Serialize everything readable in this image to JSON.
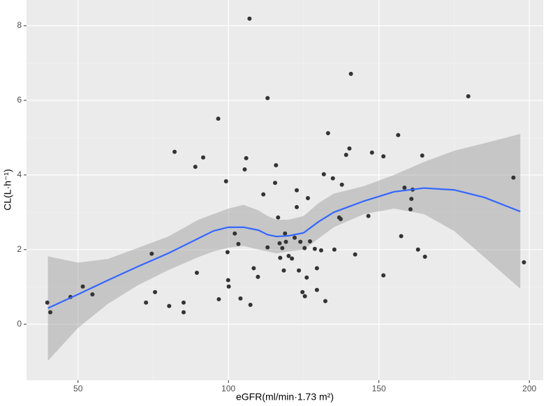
{
  "chart_data": {
    "type": "scatter",
    "x_label": "eGFR(ml/min·1.73 m²)",
    "y_label": "CL(L·h⁻¹)",
    "xlim": [
      32.9,
      204.6
    ],
    "ylim": [
      -1.5,
      8.69
    ],
    "xticks": [
      50,
      100,
      150,
      200
    ],
    "yticks": [
      0,
      2,
      4,
      6,
      8
    ],
    "grid": true,
    "point_color": "#333333",
    "x": [
      39.8,
      40.8,
      47.5,
      51.6,
      54.8,
      74.5,
      75.6,
      72.6,
      80.3,
      85.1,
      85.1,
      82.1,
      89.0,
      91.6,
      89.5,
      96.6,
      99.2,
      99.7,
      99.9,
      100.1,
      96.8,
      104.0,
      102.1,
      103.3,
      105.4,
      105.9,
      107.0,
      107.3,
      108.4,
      109.8,
      111.6,
      113.0,
      113.0,
      115.5,
      115.8,
      116.5,
      117.0,
      117.2,
      117.9,
      118.8,
      118.4,
      119.1,
      120.0,
      121.1,
      122.0,
      122.7,
      122.7,
      123.4,
      123.9,
      124.6,
      125.3,
      125.4,
      126.0,
      126.4,
      127.1,
      128.7,
      129.4,
      129.4,
      130.8,
      131.7,
      132.2,
      133.1,
      134.7,
      135.2,
      136.8,
      137.3,
      137.7,
      139.1,
      140.2,
      140.7,
      142.1,
      146.5,
      147.7,
      151.5,
      151.5,
      156.4,
      157.4,
      158.5,
      160.5,
      160.8,
      161.2,
      163.0,
      164.4,
      165.3,
      179.7,
      194.7,
      198.2
    ],
    "y": [
      0.58,
      0.32,
      0.73,
      1.01,
      0.8,
      1.89,
      0.86,
      0.58,
      0.49,
      0.32,
      0.58,
      4.62,
      4.22,
      4.47,
      1.38,
      5.51,
      3.83,
      1.93,
      1.18,
      1.01,
      0.67,
      0.69,
      2.43,
      2.15,
      4.15,
      4.45,
      8.19,
      0.52,
      1.5,
      1.27,
      3.48,
      6.06,
      2.06,
      3.79,
      4.26,
      2.86,
      2.17,
      1.78,
      2.04,
      2.43,
      1.44,
      2.21,
      1.83,
      1.76,
      2.32,
      3.14,
      3.59,
      1.44,
      2.21,
      0.86,
      2.04,
      0.75,
      1.25,
      3.38,
      2.22,
      2.02,
      1.5,
      0.92,
      1.98,
      4.02,
      0.62,
      5.12,
      3.91,
      2.0,
      2.86,
      2.82,
      3.74,
      4.54,
      4.71,
      6.71,
      1.87,
      2.9,
      4.6,
      4.5,
      1.31,
      5.07,
      2.36,
      3.66,
      3.08,
      3.36,
      3.61,
      2.0,
      4.52,
      1.81,
      6.11,
      3.93,
      1.66
    ],
    "smooth": {
      "color": "#3366ff",
      "band_color": "#999999",
      "x": [
        40,
        50,
        60,
        70,
        80,
        90,
        95,
        100,
        105,
        110,
        113,
        116,
        120,
        125,
        130,
        135,
        145,
        155,
        165,
        175,
        185,
        197
      ],
      "values": [
        0.43,
        0.8,
        1.18,
        1.55,
        1.9,
        2.3,
        2.5,
        2.6,
        2.6,
        2.52,
        2.4,
        2.35,
        2.37,
        2.45,
        2.75,
        3.0,
        3.3,
        3.55,
        3.65,
        3.6,
        3.4,
        3.02
      ],
      "lower": [
        -0.98,
        -0.1,
        0.55,
        1.05,
        1.45,
        1.8,
        1.95,
        2.05,
        2.1,
        2.0,
        1.95,
        1.9,
        1.95,
        2.0,
        2.3,
        2.6,
        2.95,
        3.1,
        2.95,
        2.5,
        1.8,
        0.95
      ],
      "upper": [
        1.82,
        1.65,
        1.75,
        2.05,
        2.35,
        2.8,
        2.95,
        3.1,
        3.2,
        3.05,
        2.9,
        2.8,
        2.8,
        2.9,
        3.25,
        3.5,
        3.7,
        4.0,
        4.35,
        4.65,
        4.85,
        5.1
      ]
    }
  }
}
